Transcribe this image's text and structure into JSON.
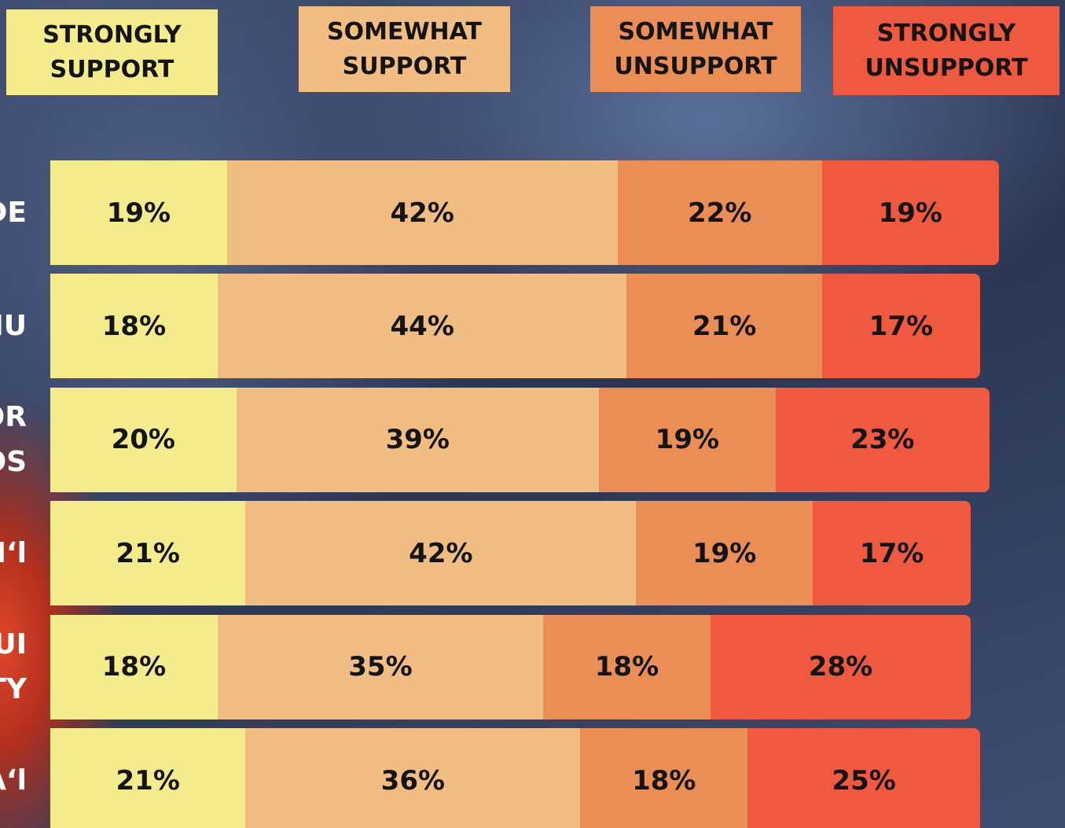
{
  "chart_data": {
    "type": "bar",
    "orientation": "horizontal",
    "stacked": true,
    "categories": [
      "DE",
      "IU",
      "OR\nOS",
      "Iʻl",
      "UI\nTY",
      "Aʻl"
    ],
    "series": [
      {
        "name": "STRONGLY SUPPORT",
        "color": "#f4ec8c",
        "values": [
          19,
          18,
          20,
          21,
          18,
          21
        ],
        "value_labels": [
          "19%",
          "18%",
          "20%",
          "21%",
          "18%",
          "21%"
        ]
      },
      {
        "name": "SOMEWHAT SUPPORT",
        "color": "#f1bd82",
        "values": [
          42,
          44,
          39,
          42,
          35,
          36
        ],
        "value_labels": [
          "42%",
          "44%",
          "39%",
          "42%",
          "35%",
          "36%"
        ]
      },
      {
        "name": "SOMEWHAT UNSUPPORT",
        "color": "#eb8e56",
        "values": [
          22,
          21,
          19,
          19,
          18,
          18
        ],
        "value_labels": [
          "22%",
          "21%",
          "19%",
          "19%",
          "18%",
          "18%"
        ]
      },
      {
        "name": "STRONGLY UNSUPPORT",
        "color": "#ee5940",
        "values": [
          19,
          17,
          23,
          17,
          28,
          25
        ],
        "value_labels": [
          "19%",
          "17%",
          "23%",
          "17%",
          "28%",
          "25%"
        ]
      }
    ]
  }
}
